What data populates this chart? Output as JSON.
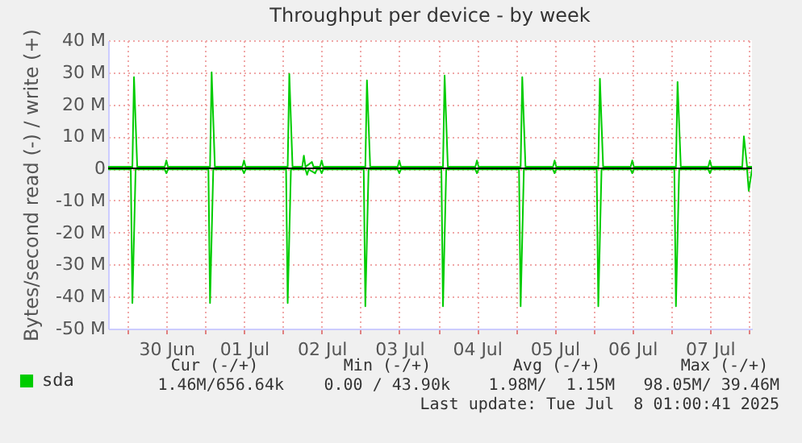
{
  "chart_data": {
    "type": "line",
    "title": "Throughput per device - by week",
    "ylabel": "Bytes/second read (-) / write (+)",
    "xlim": [
      "2025-06-29T18:00",
      "2025-07-08T01:00"
    ],
    "xticks": [
      {
        "value": "2025-06-30T00:00",
        "label": null
      },
      {
        "value": "2025-06-30T12:00",
        "label": "30 Jun"
      },
      {
        "value": "2025-07-01T00:00",
        "label": null
      },
      {
        "value": "2025-07-01T12:00",
        "label": "01 Jul"
      },
      {
        "value": "2025-07-02T00:00",
        "label": null
      },
      {
        "value": "2025-07-02T12:00",
        "label": "02 Jul"
      },
      {
        "value": "2025-07-03T00:00",
        "label": null
      },
      {
        "value": "2025-07-03T12:00",
        "label": "03 Jul"
      },
      {
        "value": "2025-07-04T00:00",
        "label": null
      },
      {
        "value": "2025-07-04T12:00",
        "label": "04 Jul"
      },
      {
        "value": "2025-07-05T00:00",
        "label": null
      },
      {
        "value": "2025-07-05T12:00",
        "label": "05 Jul"
      },
      {
        "value": "2025-07-06T00:00",
        "label": null
      },
      {
        "value": "2025-07-06T12:00",
        "label": "06 Jul"
      },
      {
        "value": "2025-07-07T00:00",
        "label": null
      },
      {
        "value": "2025-07-07T12:00",
        "label": "07 Jul"
      },
      {
        "value": "2025-07-08T00:00",
        "label": null
      }
    ],
    "ylim": [
      -50,
      40
    ],
    "yticks": [
      {
        "value": -50,
        "label": "-50 M"
      },
      {
        "value": -40,
        "label": "-40 M"
      },
      {
        "value": -30,
        "label": "-30 M"
      },
      {
        "value": -20,
        "label": "-20 M"
      },
      {
        "value": -10,
        "label": "-10 M"
      },
      0,
      {
        "value": 10,
        "label": "10 M"
      },
      {
        "value": 20,
        "label": "20 M"
      },
      {
        "value": 30,
        "label": "30 M"
      },
      {
        "value": 40,
        "label": "40 M"
      }
    ],
    "grid": true,
    "legend": "bottom left",
    "ref_lines": [
      {
        "axis": "y",
        "value": 0,
        "color": "#000000"
      }
    ],
    "series": [
      {
        "name": "sda",
        "color": "#00cc00",
        "x": [
          "2025-06-29T18:00",
          "2025-06-30T01:30",
          "2025-06-30T02:00",
          "2025-06-30T03:00",
          "2025-06-30T11:30",
          "2025-06-30T12:00",
          "2025-06-30T12:30",
          "2025-07-01T01:30",
          "2025-07-01T02:00",
          "2025-07-01T03:00",
          "2025-07-01T11:30",
          "2025-07-01T12:00",
          "2025-07-01T12:30",
          "2025-07-02T01:30",
          "2025-07-02T02:00",
          "2025-07-02T03:00",
          "2025-07-02T06:00",
          "2025-07-02T06:30",
          "2025-07-02T07:00",
          "2025-07-02T09:00",
          "2025-07-02T09:30",
          "2025-07-02T11:30",
          "2025-07-02T12:00",
          "2025-07-02T12:30",
          "2025-07-03T01:30",
          "2025-07-03T02:00",
          "2025-07-03T03:00",
          "2025-07-03T11:30",
          "2025-07-03T12:00",
          "2025-07-03T12:30",
          "2025-07-04T01:30",
          "2025-07-04T02:00",
          "2025-07-04T03:00",
          "2025-07-04T11:30",
          "2025-07-04T12:00",
          "2025-07-04T12:30",
          "2025-07-05T01:30",
          "2025-07-05T02:00",
          "2025-07-05T03:00",
          "2025-07-05T11:30",
          "2025-07-05T12:00",
          "2025-07-05T12:30",
          "2025-07-06T01:30",
          "2025-07-06T02:00",
          "2025-07-06T03:00",
          "2025-07-06T11:30",
          "2025-07-06T12:00",
          "2025-07-06T12:30",
          "2025-07-07T01:30",
          "2025-07-07T02:00",
          "2025-07-07T03:00",
          "2025-07-07T11:30",
          "2025-07-07T12:00",
          "2025-07-07T12:30",
          "2025-07-07T22:00",
          "2025-07-07T22:30",
          "2025-07-07T23:30",
          "2025-07-08T01:00"
        ],
        "values": [
          0.5,
          0.5,
          28.5,
          0.5,
          0.5,
          2.5,
          0.5,
          0.5,
          30,
          0.5,
          0.5,
          2.5,
          0.5,
          0.5,
          29.5,
          0.5,
          0.5,
          4,
          0.5,
          2,
          0.5,
          0.5,
          2.5,
          0.5,
          0.5,
          27.5,
          0.5,
          0.5,
          2.5,
          0.5,
          0.5,
          29,
          0.5,
          0.5,
          2.5,
          0.5,
          0.5,
          28.5,
          0.5,
          0.5,
          2.5,
          0.5,
          0.5,
          28,
          0.5,
          0.5,
          2.5,
          0.5,
          0.5,
          27,
          0.5,
          0.5,
          2.5,
          0.5,
          0.5,
          10,
          0.5,
          0.5
        ]
      },
      {
        "color": "#00cc00",
        "x": [
          "2025-06-29T18:00",
          "2025-06-30T01:00",
          "2025-06-30T01:30",
          "2025-06-30T02:30",
          "2025-06-30T11:30",
          "2025-06-30T12:00",
          "2025-06-30T12:30",
          "2025-07-01T01:00",
          "2025-07-01T01:30",
          "2025-07-01T02:30",
          "2025-07-01T11:30",
          "2025-07-01T12:00",
          "2025-07-01T12:30",
          "2025-07-02T01:00",
          "2025-07-02T01:30",
          "2025-07-02T02:30",
          "2025-07-02T07:00",
          "2025-07-02T07:30",
          "2025-07-02T08:00",
          "2025-07-02T10:00",
          "2025-07-02T10:30",
          "2025-07-02T11:30",
          "2025-07-02T12:00",
          "2025-07-02T12:30",
          "2025-07-03T01:00",
          "2025-07-03T01:30",
          "2025-07-03T02:30",
          "2025-07-03T11:30",
          "2025-07-03T12:00",
          "2025-07-03T12:30",
          "2025-07-04T01:00",
          "2025-07-04T01:30",
          "2025-07-04T02:30",
          "2025-07-04T11:30",
          "2025-07-04T12:00",
          "2025-07-04T12:30",
          "2025-07-05T01:00",
          "2025-07-05T01:30",
          "2025-07-05T02:30",
          "2025-07-05T11:30",
          "2025-07-05T12:00",
          "2025-07-05T12:30",
          "2025-07-06T01:00",
          "2025-07-06T01:30",
          "2025-07-06T02:30",
          "2025-07-06T11:30",
          "2025-07-06T12:00",
          "2025-07-06T12:30",
          "2025-07-07T01:00",
          "2025-07-07T01:30",
          "2025-07-07T02:30",
          "2025-07-07T11:30",
          "2025-07-07T12:00",
          "2025-07-07T12:30",
          "2025-07-07T23:30",
          "2025-07-08T00:00",
          "2025-07-08T01:00"
        ],
        "values": [
          -0.3,
          -0.3,
          -42,
          -0.3,
          -0.3,
          -1.5,
          -0.3,
          -0.3,
          -42,
          -0.3,
          -0.3,
          -1.5,
          -0.3,
          -0.3,
          -42,
          -0.3,
          -0.3,
          -2,
          -0.3,
          -1.5,
          -0.3,
          -0.3,
          -1.5,
          -0.3,
          -0.3,
          -43,
          -0.3,
          -0.3,
          -1.5,
          -0.3,
          -0.3,
          -43,
          -0.3,
          -0.3,
          -1.5,
          -0.3,
          -0.3,
          -43,
          -0.3,
          -0.3,
          -1.5,
          -0.3,
          -0.3,
          -43,
          -0.3,
          -0.3,
          -1.5,
          -0.3,
          -0.3,
          -43,
          -0.3,
          -0.3,
          -1.5,
          -0.3,
          -0.3,
          -7,
          -0.3
        ]
      }
    ],
    "annotations": [
      "Cur (-/+)",
      "Min (-/+)",
      "Avg (-/+)",
      "Max (-/+)",
      "1.46M/656.64k",
      "0.00 / 43.90k",
      "1.98M/  1.15M",
      "98.05M/ 39.46M",
      "Last update: Tue Jul  8 01:00:41 2025"
    ]
  }
}
